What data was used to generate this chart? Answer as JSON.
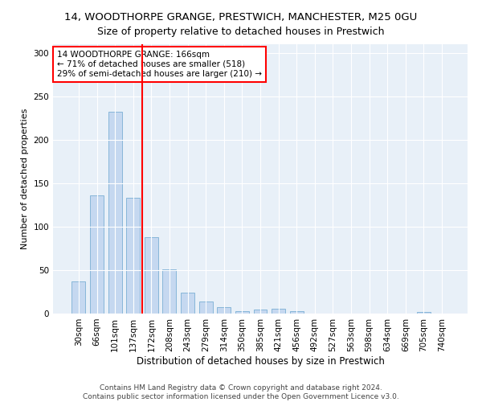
{
  "title": "14, WOODTHORPE GRANGE, PRESTWICH, MANCHESTER, M25 0GU",
  "subtitle": "Size of property relative to detached houses in Prestwich",
  "xlabel": "Distribution of detached houses by size in Prestwich",
  "ylabel": "Number of detached properties",
  "categories": [
    "30sqm",
    "66sqm",
    "101sqm",
    "137sqm",
    "172sqm",
    "208sqm",
    "243sqm",
    "279sqm",
    "314sqm",
    "350sqm",
    "385sqm",
    "421sqm",
    "456sqm",
    "492sqm",
    "527sqm",
    "563sqm",
    "598sqm",
    "634sqm",
    "669sqm",
    "705sqm",
    "740sqm"
  ],
  "values": [
    37,
    136,
    232,
    133,
    88,
    51,
    24,
    14,
    7,
    3,
    5,
    6,
    3,
    0,
    0,
    0,
    0,
    0,
    0,
    2,
    0
  ],
  "bar_color": "#c5d8f0",
  "bar_edge_color": "#7aafd4",
  "vline_color": "red",
  "vline_x_index": 3.5,
  "annotation_text": "14 WOODTHORPE GRANGE: 166sqm\n← 71% of detached houses are smaller (518)\n29% of semi-detached houses are larger (210) →",
  "annotation_box_color": "white",
  "annotation_box_edge_color": "red",
  "ylim": [
    0,
    310
  ],
  "yticks": [
    0,
    50,
    100,
    150,
    200,
    250,
    300
  ],
  "background_color": "#e8f0f8",
  "footer": "Contains HM Land Registry data © Crown copyright and database right 2024.\nContains public sector information licensed under the Open Government Licence v3.0.",
  "title_fontsize": 9.5,
  "subtitle_fontsize": 9,
  "xlabel_fontsize": 8.5,
  "ylabel_fontsize": 8,
  "tick_fontsize": 7.5,
  "annotation_fontsize": 7.5,
  "footer_fontsize": 6.5,
  "bar_width": 0.75
}
